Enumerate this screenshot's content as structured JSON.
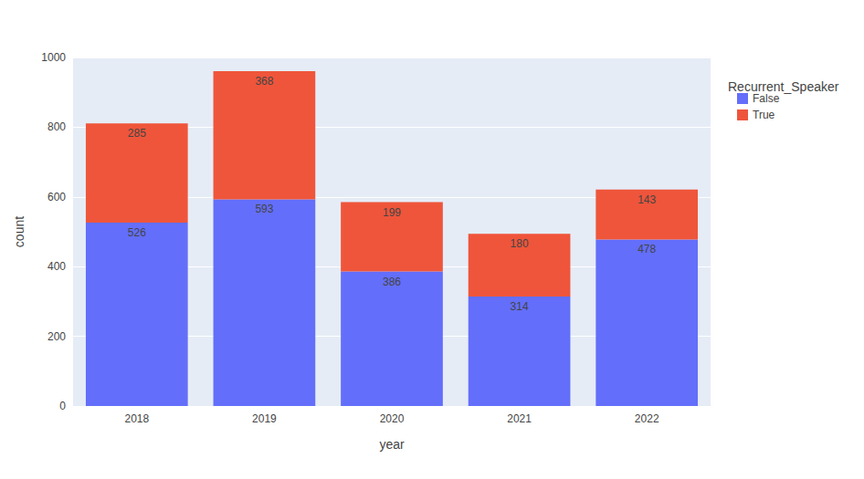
{
  "chart_data": {
    "type": "bar",
    "stacked": true,
    "data_labels": true,
    "grid": true,
    "x_label": "year",
    "y_label": "count",
    "legend_title": "Recurrent_Speaker",
    "legend": "upper right",
    "categories": [
      "2018",
      "2019",
      "2020",
      "2021",
      "2022"
    ],
    "series": [
      {
        "name": "False",
        "color": "#636efa",
        "values": [
          526,
          593,
          386,
          314,
          478
        ]
      },
      {
        "name": "True",
        "color": "#EF553B",
        "values": [
          285,
          368,
          199,
          180,
          143
        ]
      }
    ],
    "ylim": [
      0,
      1000
    ],
    "yticks": [
      0,
      200,
      400,
      600,
      800,
      1000
    ]
  }
}
